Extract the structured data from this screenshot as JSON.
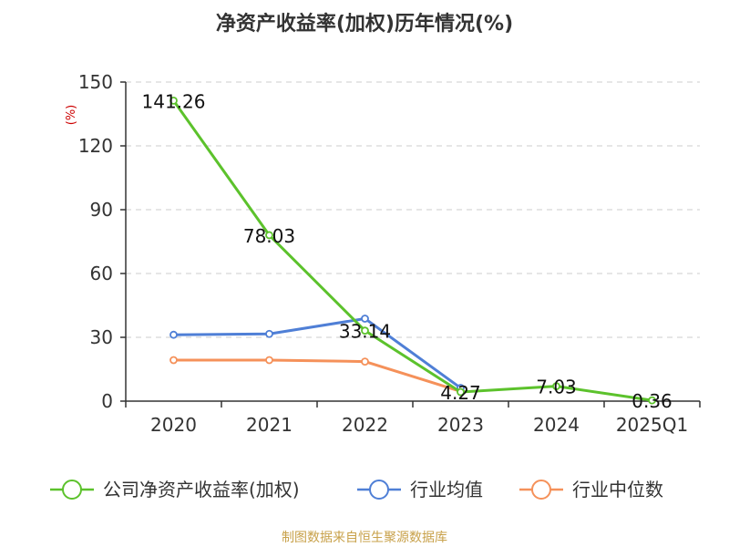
{
  "chart_data": {
    "type": "line",
    "title": "净资产收益率(加权)历年情况(%)",
    "ylabel": "(%)",
    "xlabel": "",
    "ylim": [
      0,
      150
    ],
    "yticks": [
      0,
      30,
      60,
      90,
      120,
      150
    ],
    "grid": true,
    "legend_position": "bottom",
    "categories": [
      "2020",
      "2021",
      "2022",
      "2023",
      "2024",
      "2025Q1"
    ],
    "series": [
      {
        "name": "公司净资产收益率(加权)",
        "color": "#5cc22c",
        "values": [
          141.26,
          78.03,
          33.14,
          4.27,
          7.03,
          0.36
        ],
        "labels": [
          "141.26",
          "78.03",
          "33.14",
          "4.27",
          "7.03",
          "0.36"
        ]
      },
      {
        "name": "行业均值",
        "color": "#4f7fd6",
        "values": [
          31.2,
          31.6,
          38.8,
          6.2,
          null,
          null
        ]
      },
      {
        "name": "行业中位数",
        "color": "#f5915a",
        "values": [
          19.3,
          19.3,
          18.6,
          4.6,
          null,
          null
        ]
      }
    ],
    "source": "制图数据来自恒生聚源数据库"
  }
}
